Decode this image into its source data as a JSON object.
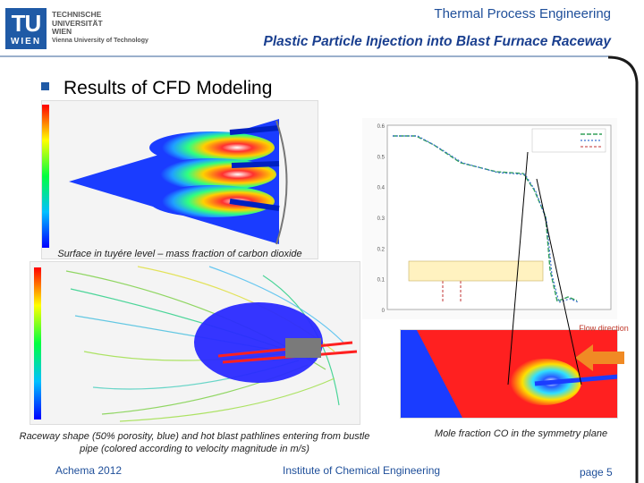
{
  "header": {
    "logo_text": "TU",
    "logo_sub": "WIEN",
    "uni_lines": [
      "TECHNISCHE",
      "UNIVERSITÄT",
      "WIEN",
      "Vienna University of Technology"
    ],
    "institute": "Thermal Process Engineering",
    "title": "Plastic Particle Injection into Blast Furnace Raceway"
  },
  "section": {
    "heading": "Results of CFD Modeling"
  },
  "figures": {
    "fig1_caption": "Surface in tuyére level – mass fraction of carbon dioxide",
    "fig2_caption": "Raceway shape (50% porosity, blue) and hot blast pathlines entering from bustle pipe (colored according to velocity magnitude in m/s)",
    "fig4_caption": "Mole fraction CO in the symmetry plane",
    "flow_direction_label": "Flow direction"
  },
  "chart_data": {
    "type": "line",
    "y_ticks": [
      "0",
      "0.1",
      "0.2",
      "0.3",
      "0.4",
      "0.5",
      "0.6"
    ],
    "ylim": [
      0,
      0.6
    ],
    "series": []
  },
  "colors": {
    "brand_blue": "#1f5aa6",
    "accent_orange": "#f08a24"
  },
  "footer": {
    "event": "Achema 2012",
    "institute": "Institute of Chemical Engineering",
    "page": "page 5"
  }
}
